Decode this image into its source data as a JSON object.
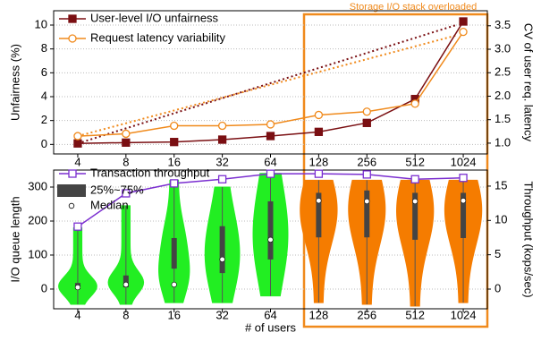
{
  "chart_data": [
    {
      "type": "line",
      "categories": [
        "4",
        "8",
        "16",
        "32",
        "64",
        "128",
        "256",
        "512",
        "1024"
      ],
      "ylabel": "Unfairness (%)",
      "y2label": "CV of user req. latency",
      "ylim": [
        -0.8,
        11.2
      ],
      "yticks": [
        0,
        2,
        4,
        6,
        8,
        10
      ],
      "y2lim": [
        0.77,
        3.82
      ],
      "y2ticks": [
        {
          "value": 1,
          "label": "1.0"
        },
        1.5,
        {
          "value": 2,
          "label": "2.0"
        },
        2.5,
        {
          "value": 3,
          "label": "3.0"
        },
        3.5
      ],
      "grid": true,
      "annotation": "Storage I/O stack overloaded",
      "series": [
        {
          "name": "User-level I/O unfairness",
          "color": "#7a0f12",
          "marker": "square",
          "values": [
            0.08,
            0.15,
            0.2,
            0.4,
            0.7,
            1.05,
            1.8,
            3.8,
            10.3
          ]
        },
        {
          "name": "Request latency variability",
          "color": "#f08a1c",
          "marker": "circle",
          "axis": "y2",
          "values": [
            1.15,
            1.2,
            1.37,
            1.37,
            1.4,
            1.6,
            1.67,
            1.84,
            3.37
          ]
        }
      ]
    },
    {
      "type": "violin",
      "categories": [
        "4",
        "8",
        "16",
        "32",
        "64",
        "128",
        "256",
        "512",
        "1024"
      ],
      "xlabel": "# of users",
      "ylabel": "I/O queue length",
      "y2label": "Throughput (kops/sec)",
      "ylim": [
        -58,
        350
      ],
      "yticks": [
        0,
        100,
        200,
        300
      ],
      "y2lim": [
        -2.87,
        17.34
      ],
      "y2ticks": [
        0,
        5,
        10,
        15
      ],
      "grid": true,
      "box_label": "25%~75%",
      "median_label": "Median",
      "colors": [
        "#22ee22",
        "#22ee22",
        "#22ee22",
        "#22ee22",
        "#22ee22",
        "#f57c00",
        "#f57c00",
        "#f57c00",
        "#f57c00"
      ],
      "min": [
        -45,
        -45,
        -40,
        -40,
        -20,
        -40,
        -45,
        -50,
        -40
      ],
      "q1": [
        0,
        5,
        60,
        47,
        87,
        152,
        152,
        145,
        150
      ],
      "median": [
        5,
        13,
        13,
        87,
        145,
        260,
        258,
        258,
        260
      ],
      "q3": [
        18,
        40,
        150,
        185,
        258,
        283,
        290,
        283,
        283
      ],
      "max": [
        180,
        245,
        320,
        300,
        340,
        320,
        320,
        320,
        320
      ],
      "series": [
        {
          "name": "Transaction throughput",
          "color": "#7b2fd0",
          "marker": "square",
          "axis": "y2",
          "values": [
            9.1,
            13.95,
            15.4,
            16.0,
            16.8,
            16.8,
            16.7,
            16.0,
            16.2
          ]
        }
      ]
    }
  ]
}
